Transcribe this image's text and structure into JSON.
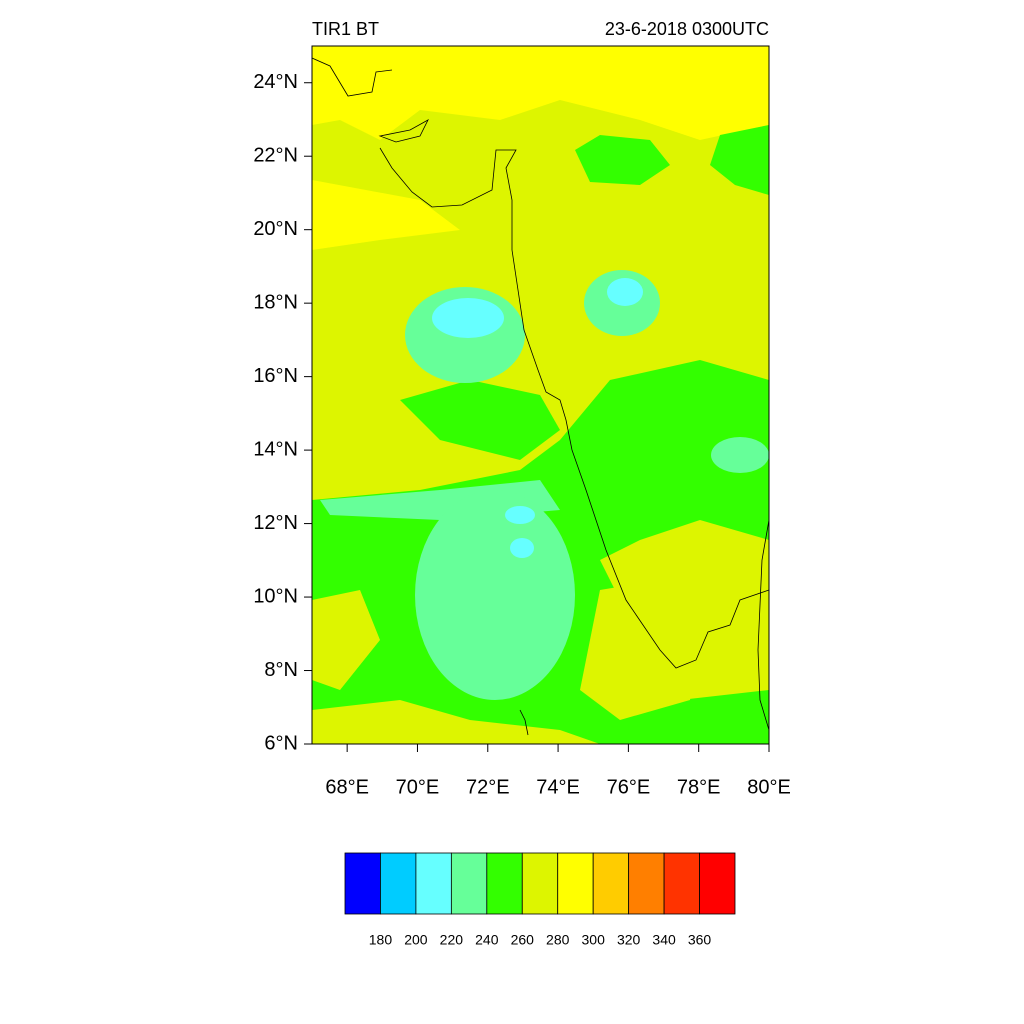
{
  "map": {
    "title_left": "TIR1 BT",
    "title_right": "23-6-2018 0300UTC",
    "lon_range": [
      67,
      80
    ],
    "lat_range": [
      6,
      25
    ],
    "lon_ticks": [
      {
        "value": 68,
        "label": "68°E"
      },
      {
        "value": 70,
        "label": "70°E"
      },
      {
        "value": 72,
        "label": "72°E"
      },
      {
        "value": 74,
        "label": "74°E"
      },
      {
        "value": 76,
        "label": "76°E"
      },
      {
        "value": 78,
        "label": "78°E"
      },
      {
        "value": 80,
        "label": "80°E"
      }
    ],
    "lat_ticks": [
      {
        "value": 6,
        "label": "6°N"
      },
      {
        "value": 8,
        "label": "8°N"
      },
      {
        "value": 10,
        "label": "10°N"
      },
      {
        "value": 12,
        "label": "12°N"
      },
      {
        "value": 14,
        "label": "14°N"
      },
      {
        "value": 16,
        "label": "16°N"
      },
      {
        "value": 18,
        "label": "18°N"
      },
      {
        "value": 20,
        "label": "20°N"
      },
      {
        "value": 22,
        "label": "22°N"
      },
      {
        "value": 24,
        "label": "24°N"
      }
    ]
  },
  "colorbar": {
    "colors": [
      "#0000ff",
      "#00ccff",
      "#66ffff",
      "#66ff99",
      "#33ff00",
      "#ddf500",
      "#ffff00",
      "#ffcc00",
      "#ff7f00",
      "#ff3300",
      "#ff0000"
    ],
    "labels": [
      180,
      200,
      220,
      240,
      260,
      280,
      300,
      320,
      340,
      360
    ]
  }
}
